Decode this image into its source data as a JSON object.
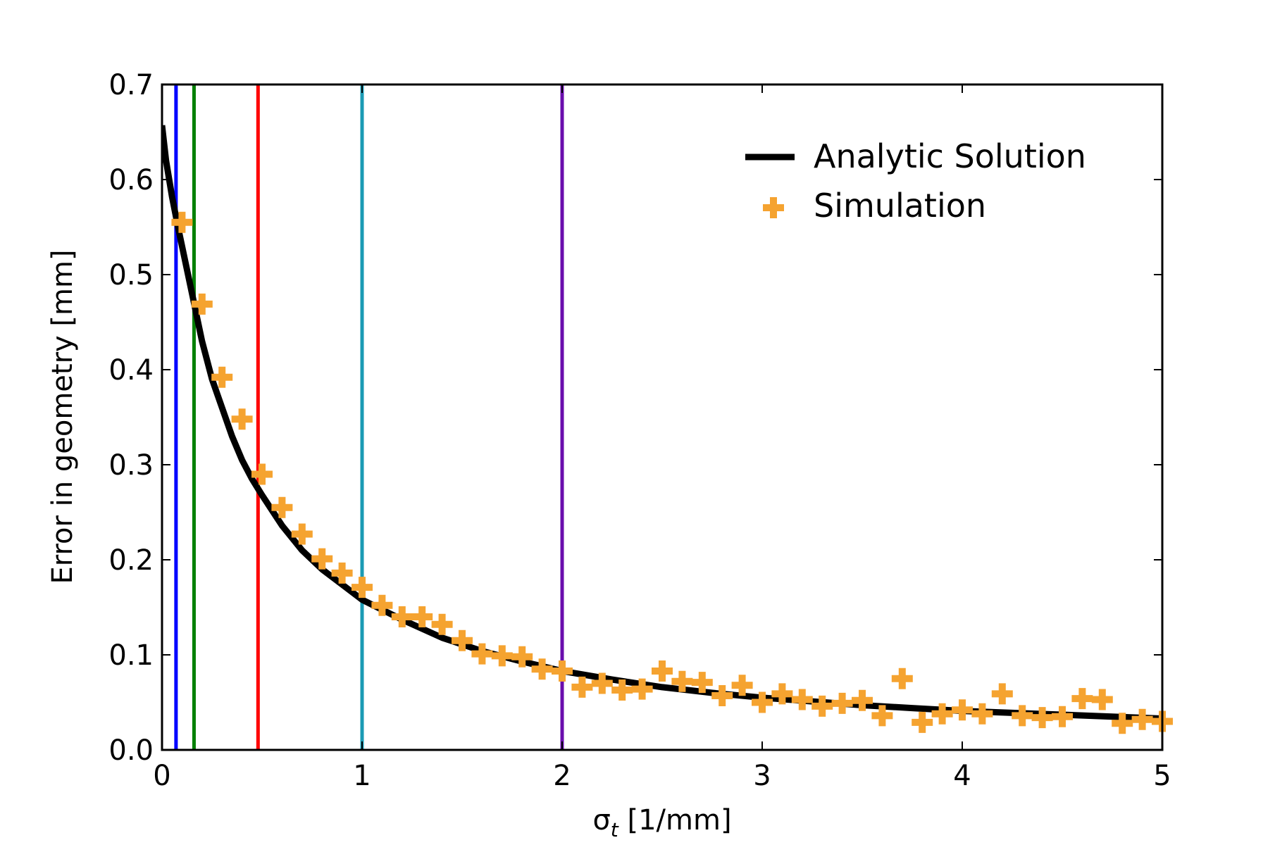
{
  "chart_data": {
    "type": "line",
    "xlabel_symbol": "σ",
    "xlabel_subscript": "t",
    "xlabel_units": " [1/mm]",
    "ylabel": "Error in geometry [mm]",
    "xlim": [
      0,
      5
    ],
    "ylim": [
      0,
      0.7
    ],
    "xticks": [
      0,
      1,
      2,
      3,
      4,
      5
    ],
    "xtick_labels": [
      "0",
      "1",
      "2",
      "3",
      "4",
      "5"
    ],
    "yticks": [
      0.0,
      0.1,
      0.2,
      0.3,
      0.4,
      0.5,
      0.6,
      0.7
    ],
    "ytick_labels": [
      "0.0",
      "0.1",
      "0.2",
      "0.3",
      "0.4",
      "0.5",
      "0.6",
      "0.7"
    ],
    "grid": false,
    "legend_position": "top-right",
    "vertical_lines": [
      {
        "x": 0.07,
        "color": "#0000ff"
      },
      {
        "x": 0.16,
        "color": "#008000"
      },
      {
        "x": 0.48,
        "color": "#ff0000"
      },
      {
        "x": 1.0,
        "color": "#1a9bb4"
      },
      {
        "x": 2.0,
        "color": "#6a0dad"
      }
    ],
    "series": [
      {
        "name": "Analytic Solution",
        "kind": "line",
        "color": "#000000",
        "x": [
          0,
          0.02,
          0.05,
          0.08,
          0.1,
          0.15,
          0.2,
          0.25,
          0.3,
          0.35,
          0.4,
          0.45,
          0.5,
          0.6,
          0.7,
          0.8,
          0.9,
          1.0,
          1.2,
          1.4,
          1.6,
          1.8,
          2.0,
          2.25,
          2.5,
          2.75,
          3.0,
          3.25,
          3.5,
          3.75,
          4.0,
          4.25,
          4.5,
          4.75,
          5.0
        ],
        "y": [
          0.657,
          0.62,
          0.582,
          0.55,
          0.53,
          0.48,
          0.43,
          0.39,
          0.36,
          0.33,
          0.305,
          0.285,
          0.268,
          0.236,
          0.21,
          0.19,
          0.174,
          0.158,
          0.137,
          0.118,
          0.104,
          0.093,
          0.083,
          0.074,
          0.066,
          0.06,
          0.055,
          0.051,
          0.047,
          0.044,
          0.041,
          0.039,
          0.037,
          0.035,
          0.033
        ]
      },
      {
        "name": "Simulation",
        "kind": "scatter",
        "color": "#f5a330",
        "x": [
          0.1,
          0.2,
          0.3,
          0.4,
          0.5,
          0.6,
          0.7,
          0.8,
          0.9,
          1.0,
          1.1,
          1.2,
          1.3,
          1.4,
          1.5,
          1.6,
          1.7,
          1.8,
          1.9,
          2.0,
          2.1,
          2.2,
          2.3,
          2.4,
          2.5,
          2.6,
          2.7,
          2.8,
          2.9,
          3.0,
          3.1,
          3.2,
          3.3,
          3.4,
          3.5,
          3.6,
          3.7,
          3.8,
          3.9,
          4.0,
          4.1,
          4.2,
          4.3,
          4.4,
          4.5,
          4.6,
          4.7,
          4.8,
          4.9,
          5.0
        ],
        "y": [
          0.555,
          0.469,
          0.392,
          0.348,
          0.29,
          0.255,
          0.227,
          0.201,
          0.186,
          0.171,
          0.152,
          0.14,
          0.14,
          0.132,
          0.115,
          0.101,
          0.099,
          0.098,
          0.085,
          0.083,
          0.066,
          0.07,
          0.063,
          0.064,
          0.083,
          0.072,
          0.071,
          0.057,
          0.068,
          0.05,
          0.059,
          0.053,
          0.046,
          0.049,
          0.052,
          0.036,
          0.075,
          0.029,
          0.038,
          0.042,
          0.038,
          0.059,
          0.036,
          0.034,
          0.035,
          0.054,
          0.053,
          0.028,
          0.032,
          0.03
        ]
      }
    ]
  }
}
